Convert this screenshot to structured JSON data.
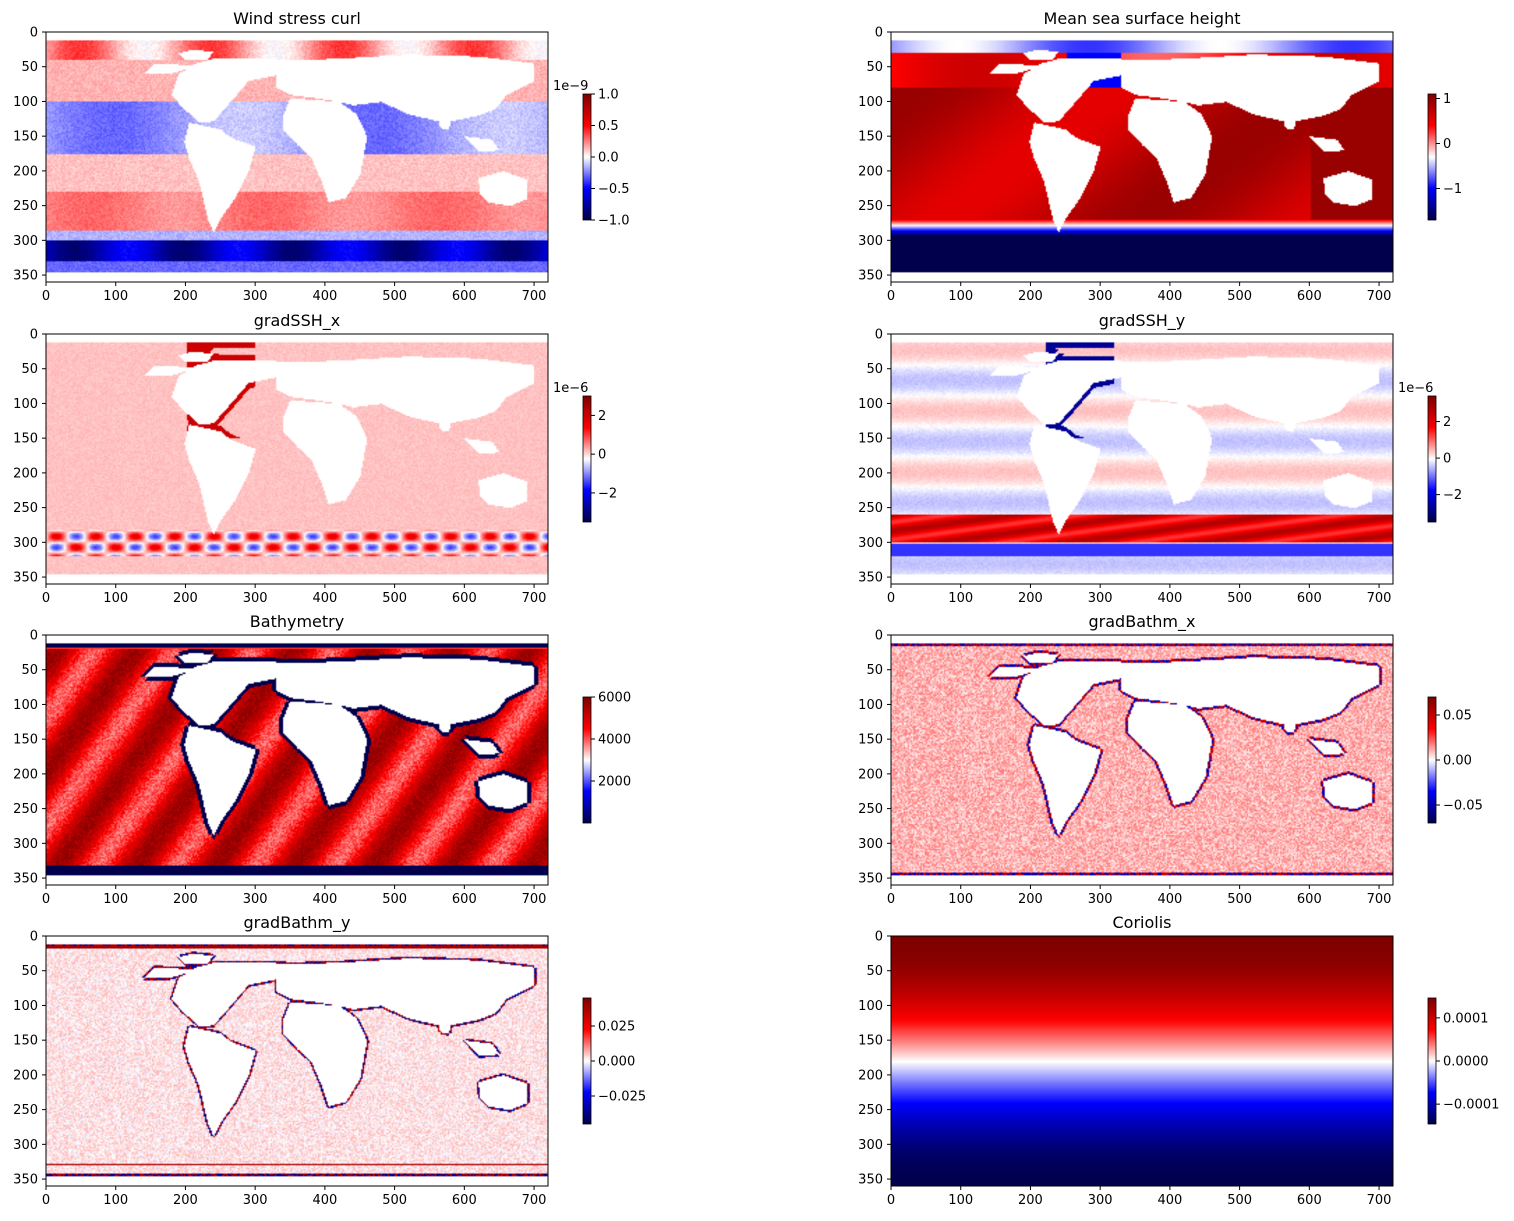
{
  "colors": {
    "negative": "#00004c",
    "mid": "#ffffff",
    "positive": "#7f0000",
    "land": "#ffffff"
  },
  "chart_data": [
    {
      "type": "heatmap",
      "title": "Wind stress curl",
      "x_ticks": [
        0,
        100,
        200,
        300,
        400,
        500,
        600,
        700
      ],
      "xlim": [
        0,
        720
      ],
      "y_ticks": [
        0,
        50,
        100,
        150,
        200,
        250,
        300,
        350
      ],
      "ylim": [
        360,
        0
      ],
      "colormap": "seismic",
      "colorbar_range": [
        -1.0,
        1.0
      ],
      "colorbar_ticks": [
        "−1.0",
        "−0.5",
        "0.0",
        "0.5",
        "1.0"
      ],
      "colorbar_tick_values": [
        -1.0,
        -0.5,
        0.0,
        0.5,
        1.0
      ],
      "colorbar_exponent": "1e−9",
      "pattern": "windcurl"
    },
    {
      "type": "heatmap",
      "title": "Mean sea surface height",
      "x_ticks": [
        0,
        100,
        200,
        300,
        400,
        500,
        600,
        700
      ],
      "xlim": [
        0,
        720
      ],
      "y_ticks": [
        0,
        50,
        100,
        150,
        200,
        250,
        300,
        350
      ],
      "ylim": [
        360,
        0
      ],
      "colormap": "seismic",
      "colorbar_range": [
        -1.7,
        1.1
      ],
      "colorbar_ticks": [
        "−1",
        "0",
        "1"
      ],
      "colorbar_tick_values": [
        -1,
        0,
        1
      ],
      "colorbar_exponent": "",
      "pattern": "ssh"
    },
    {
      "type": "heatmap",
      "title": "gradSSH_x",
      "x_ticks": [
        0,
        100,
        200,
        300,
        400,
        500,
        600,
        700
      ],
      "xlim": [
        0,
        720
      ],
      "y_ticks": [
        0,
        50,
        100,
        150,
        200,
        250,
        300,
        350
      ],
      "ylim": [
        360,
        0
      ],
      "colormap": "seismic",
      "colorbar_range": [
        -3.5,
        3.0
      ],
      "colorbar_ticks": [
        "−2",
        "0",
        "2"
      ],
      "colorbar_tick_values": [
        -2,
        0,
        2
      ],
      "colorbar_exponent": "1e−6",
      "pattern": "gradsshx"
    },
    {
      "type": "heatmap",
      "title": "gradSSH_y",
      "x_ticks": [
        0,
        100,
        200,
        300,
        400,
        500,
        600,
        700
      ],
      "xlim": [
        0,
        720
      ],
      "y_ticks": [
        0,
        50,
        100,
        150,
        200,
        250,
        300,
        350
      ],
      "ylim": [
        360,
        0
      ],
      "colormap": "seismic",
      "colorbar_range": [
        -3.5,
        3.4
      ],
      "colorbar_ticks": [
        "−2",
        "0",
        "2"
      ],
      "colorbar_tick_values": [
        -2,
        0,
        2
      ],
      "colorbar_exponent": "1e−6",
      "pattern": "gradsshy"
    },
    {
      "type": "heatmap",
      "title": "Bathymetry",
      "x_ticks": [
        0,
        100,
        200,
        300,
        400,
        500,
        600,
        700
      ],
      "xlim": [
        0,
        720
      ],
      "y_ticks": [
        0,
        50,
        100,
        150,
        200,
        250,
        300,
        350
      ],
      "ylim": [
        360,
        0
      ],
      "colormap": "seismic",
      "colorbar_range": [
        0,
        6000
      ],
      "colorbar_ticks": [
        "2000",
        "4000",
        "6000"
      ],
      "colorbar_tick_values": [
        2000,
        4000,
        6000
      ],
      "colorbar_exponent": "",
      "pattern": "bathy"
    },
    {
      "type": "heatmap",
      "title": "gradBathm_x",
      "x_ticks": [
        0,
        100,
        200,
        300,
        400,
        500,
        600,
        700
      ],
      "xlim": [
        0,
        720
      ],
      "y_ticks": [
        0,
        50,
        100,
        150,
        200,
        250,
        300,
        350
      ],
      "ylim": [
        360,
        0
      ],
      "colormap": "seismic",
      "colorbar_range": [
        -0.07,
        0.07
      ],
      "colorbar_ticks": [
        "−0.05",
        "0.00",
        "0.05"
      ],
      "colorbar_tick_values": [
        -0.05,
        0.0,
        0.05
      ],
      "colorbar_exponent": "",
      "pattern": "gbx"
    },
    {
      "type": "heatmap",
      "title": "gradBathm_y",
      "x_ticks": [
        0,
        100,
        200,
        300,
        400,
        500,
        600,
        700
      ],
      "xlim": [
        0,
        720
      ],
      "y_ticks": [
        0,
        50,
        100,
        150,
        200,
        250,
        300,
        350
      ],
      "ylim": [
        360,
        0
      ],
      "colormap": "seismic",
      "colorbar_range": [
        -0.045,
        0.045
      ],
      "colorbar_ticks": [
        "−0.025",
        "0.000",
        "0.025"
      ],
      "colorbar_tick_values": [
        -0.025,
        0.0,
        0.025
      ],
      "colorbar_exponent": "",
      "pattern": "gby"
    },
    {
      "type": "heatmap",
      "title": "Coriolis",
      "x_ticks": [
        0,
        100,
        200,
        300,
        400,
        500,
        600,
        700
      ],
      "xlim": [
        0,
        720
      ],
      "y_ticks": [
        0,
        50,
        100,
        150,
        200,
        250,
        300,
        350
      ],
      "ylim": [
        360,
        0
      ],
      "colormap": "seismic",
      "colorbar_range": [
        -0.000146,
        0.000146
      ],
      "colorbar_ticks": [
        "−0.0001",
        "0.0000",
        "0.0001"
      ],
      "colorbar_tick_values": [
        -0.0001,
        0.0,
        0.0001
      ],
      "colorbar_exponent": "",
      "pattern": "coriolis"
    }
  ]
}
